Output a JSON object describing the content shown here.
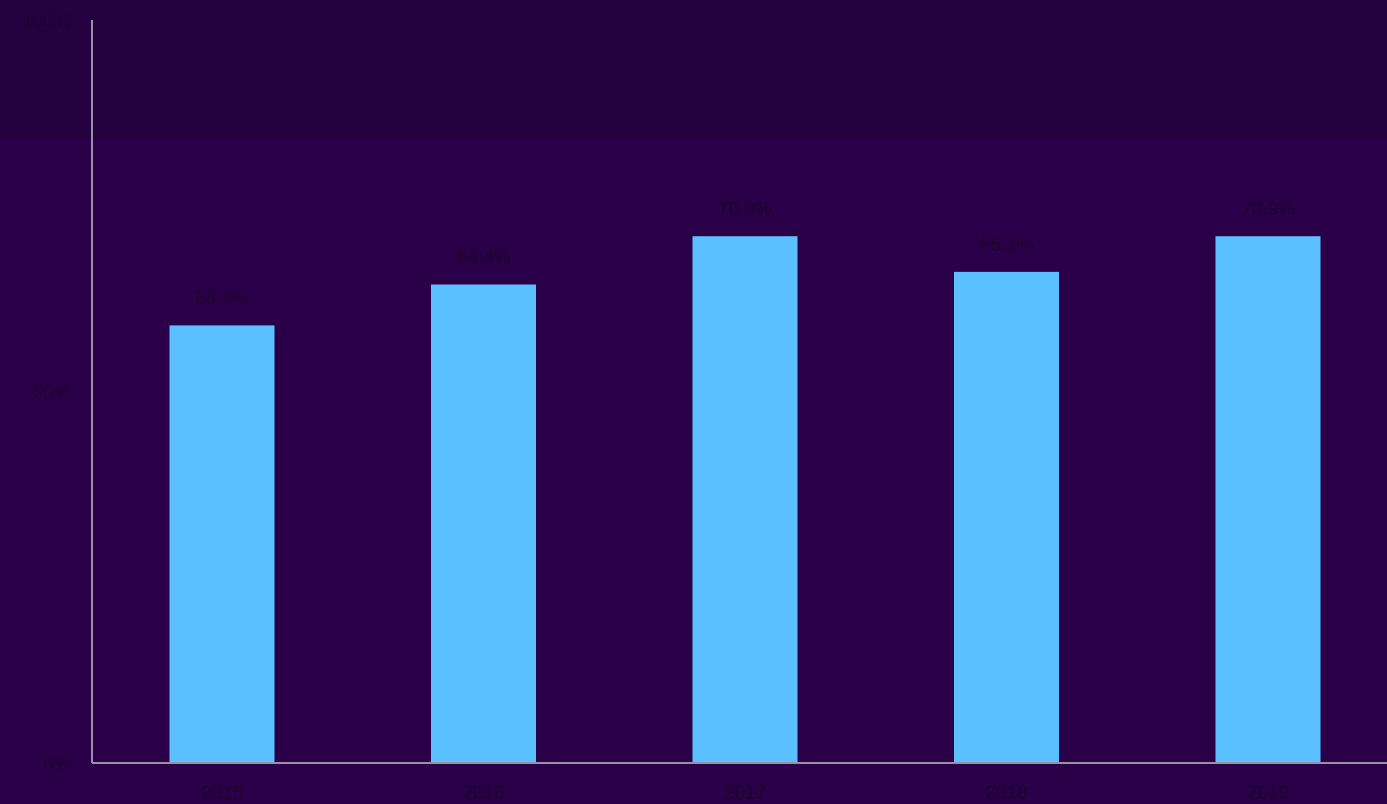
{
  "chart_data": {
    "type": "bar",
    "categories": [
      "2015",
      "2016",
      "2017",
      "2018",
      "2019"
    ],
    "values": [
      58.9,
      64.4,
      70.9,
      66.1,
      70.9
    ],
    "data_labels": [
      "58.9%",
      "64.4%",
      "70.9%",
      "66.1%",
      "70.9%"
    ],
    "y_ticks": [
      {
        "value": 0,
        "label": "0%"
      },
      {
        "value": 50,
        "label": "50%"
      },
      {
        "value": 100,
        "label": "100%"
      }
    ],
    "ylim": [
      0,
      100
    ],
    "title": "",
    "xlabel": "",
    "ylabel": "",
    "grid": false,
    "legend": "none",
    "colors": {
      "bar": "#5bc0ff",
      "background": "#2a0148",
      "axis": "#9a8fa6",
      "text": "#1c0030"
    }
  }
}
